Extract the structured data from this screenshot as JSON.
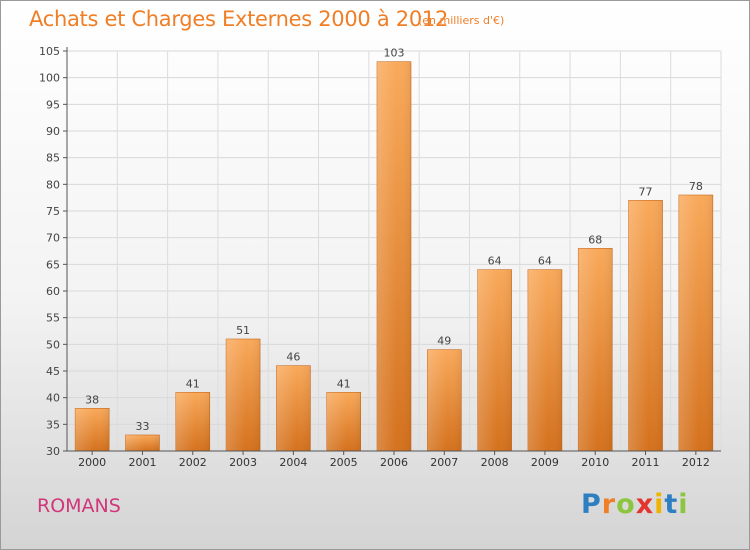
{
  "header": {
    "title": "Achats et Charges Externes 2000 à 2012",
    "subtitle": "(en milliers d'€)"
  },
  "footer": {
    "city": "ROMANS",
    "logo": {
      "text": "Proxiti",
      "letters": [
        "P",
        "r",
        "o",
        "x",
        "i",
        "t",
        "i"
      ],
      "colors": [
        "#2d7fc1",
        "#f07e26",
        "#8cc63f",
        "#e3342f",
        "#f0b400",
        "#2d7fc1",
        "#8cc63f"
      ]
    }
  },
  "colors": {
    "bar_top": "#f9a95a",
    "bar_bottom": "#d4711d",
    "accent": "#f07e26"
  },
  "chart_data": {
    "type": "bar",
    "title": "Achats et Charges Externes 2000 à 2012",
    "subtitle": "(en milliers d'€)",
    "categories": [
      "2000",
      "2001",
      "2002",
      "2003",
      "2004",
      "2005",
      "2006",
      "2007",
      "2008",
      "2009",
      "2010",
      "2011",
      "2012"
    ],
    "values": [
      38,
      33,
      41,
      51,
      46,
      41,
      103,
      49,
      64,
      64,
      68,
      77,
      78
    ],
    "ylim": [
      30,
      105
    ],
    "yticks": [
      30,
      35,
      40,
      45,
      50,
      55,
      60,
      65,
      70,
      75,
      80,
      85,
      90,
      95,
      100,
      105
    ],
    "grid": true,
    "xlabel": "",
    "ylabel": ""
  }
}
